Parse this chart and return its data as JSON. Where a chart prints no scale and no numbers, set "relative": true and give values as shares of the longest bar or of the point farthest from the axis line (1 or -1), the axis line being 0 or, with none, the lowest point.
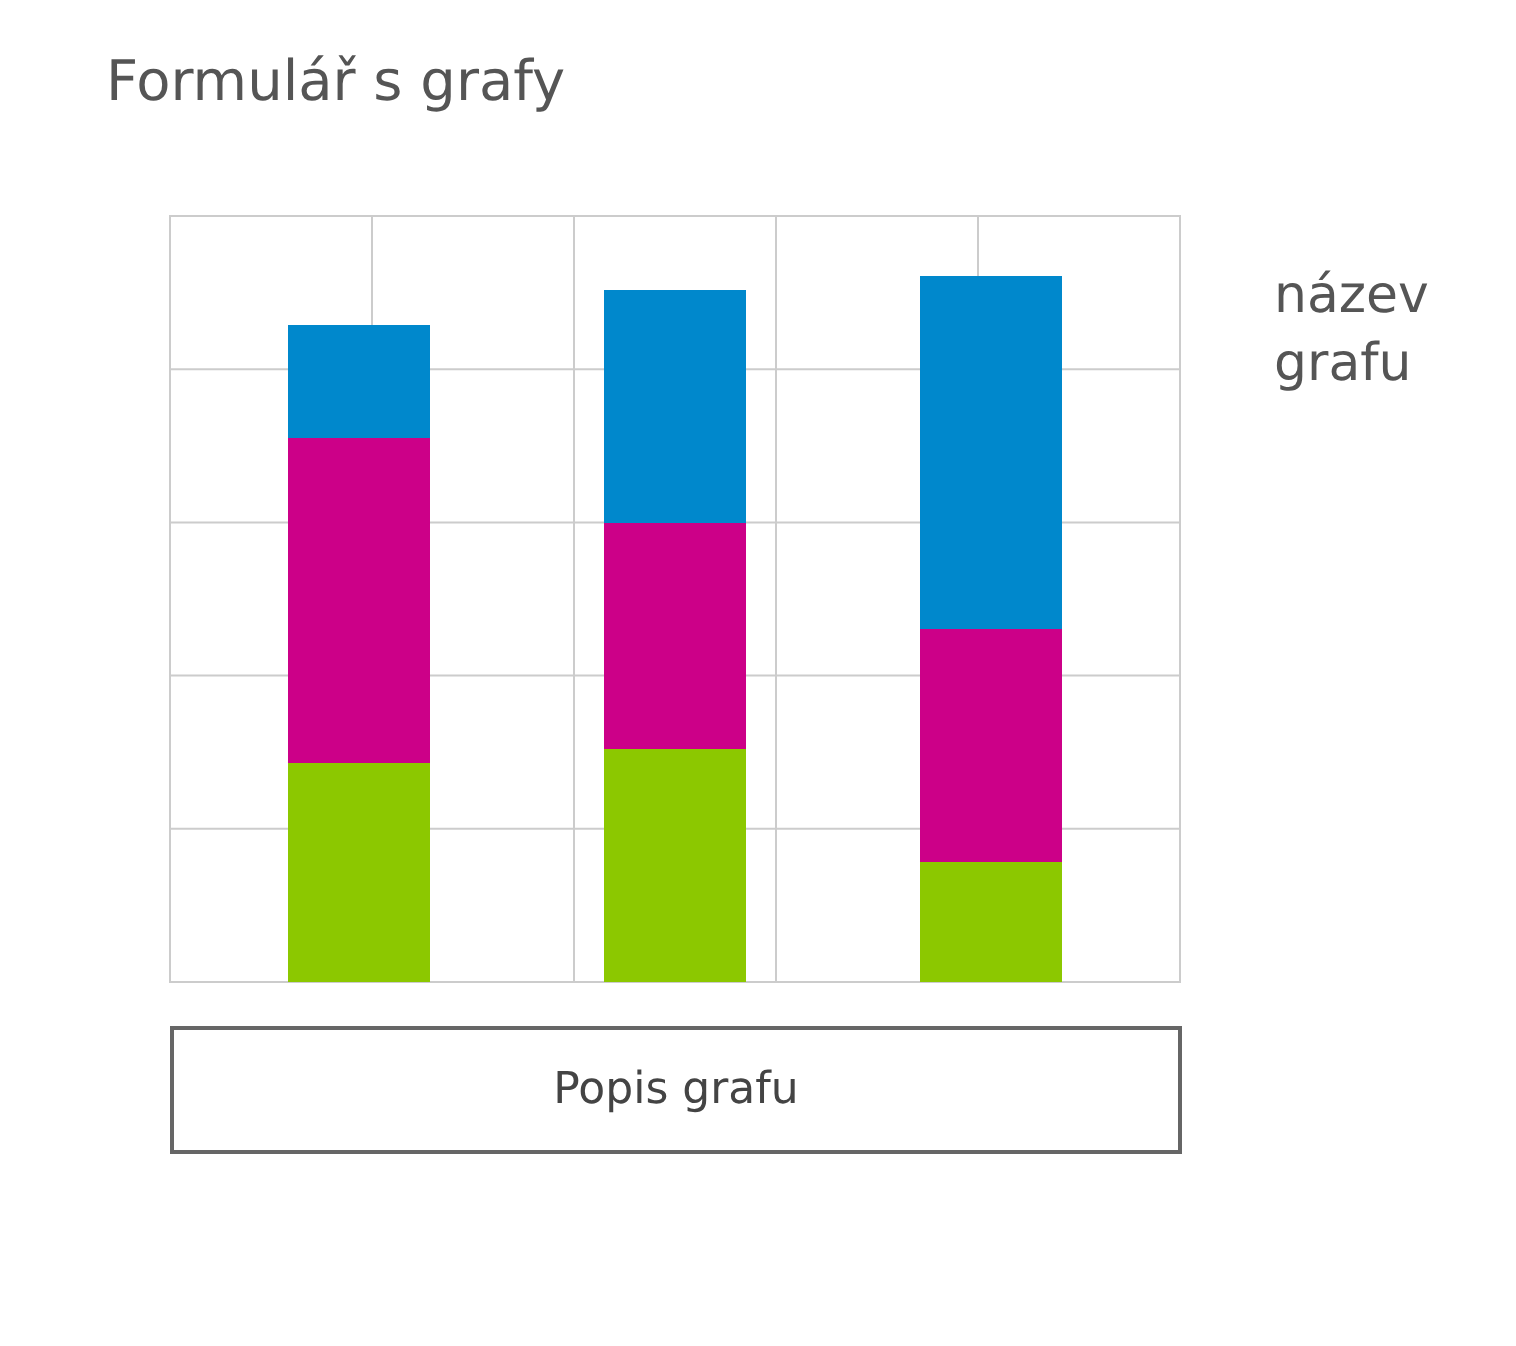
{
  "chart_data": {
    "type": "bar",
    "title": "Formulář s grafy",
    "stacked": true,
    "relative": true,
    "grid": true,
    "categories": [
      null,
      null,
      null
    ],
    "series": [
      {
        "color": "#8cc800",
        "values": [
          0.31,
          0.33,
          0.17
        ]
      },
      {
        "color": "#cc0088",
        "values": [
          0.46,
          0.32,
          0.33
        ]
      },
      {
        "color": "#0088cc",
        "values": [
          0.16,
          0.33,
          0.5
        ]
      }
    ],
    "annotations": [
      "název grafu",
      "Popis grafu"
    ]
  }
}
